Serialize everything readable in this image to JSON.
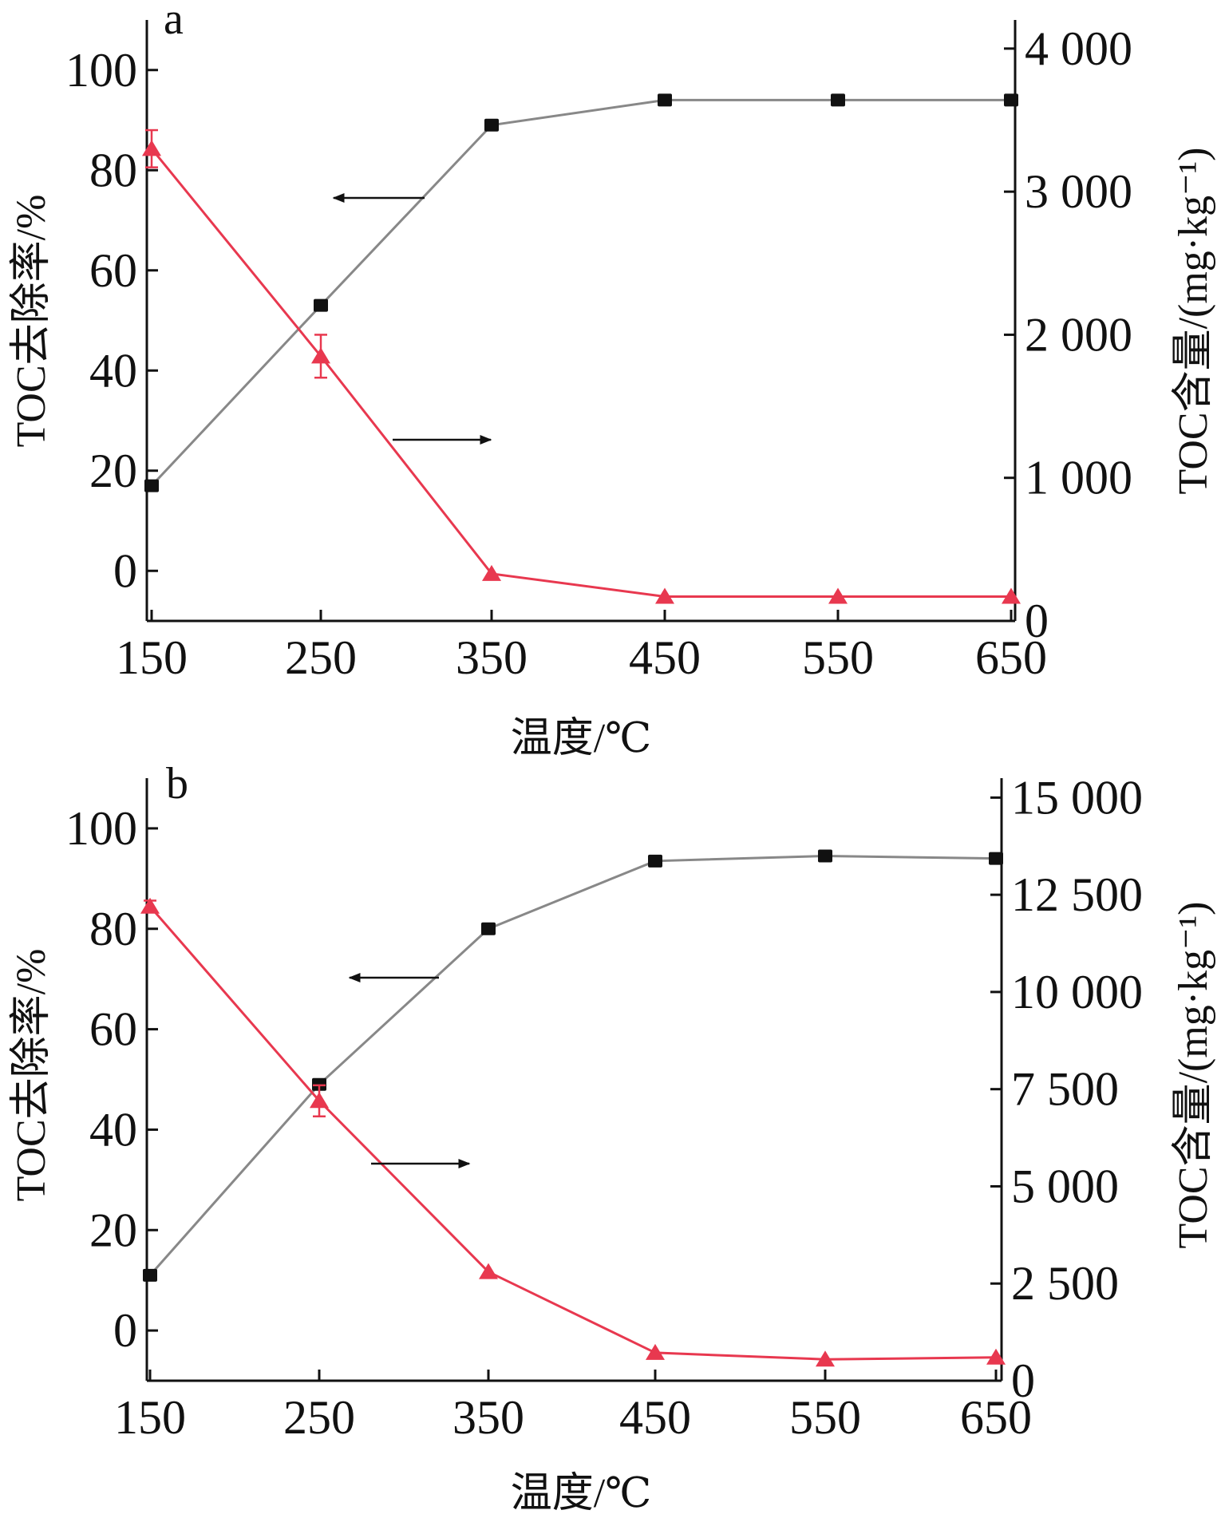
{
  "chart_data": [
    {
      "type": "line",
      "panel_label": "a",
      "xlabel": "温度/℃",
      "ylabel_left": "TOC去除率/%",
      "ylabel_right": "TOC含量/(mg·kg⁻¹)",
      "x": [
        150,
        250,
        350,
        450,
        550,
        650
      ],
      "x_tick_labels": [
        "150",
        "250",
        "350",
        "450",
        "550",
        "650"
      ],
      "xlim": [
        150,
        650
      ],
      "ylim_left": [
        -10,
        110
      ],
      "ylim_right": [
        0,
        4200
      ],
      "left_ticks": [
        "0",
        "20",
        "40",
        "60",
        "80",
        "100"
      ],
      "right_ticks": [
        "0",
        "1 000",
        "2 000",
        "3 000",
        "4 000"
      ],
      "grid": false,
      "series": [
        {
          "axis": "left",
          "marker": "square",
          "color": "#888888",
          "marker_color": "#111111",
          "values": [
            17,
            53,
            89,
            94,
            94,
            94
          ]
        },
        {
          "axis": "right",
          "marker": "triangle",
          "color": "#e8384f",
          "values": [
            3300,
            1850,
            330,
            170,
            170,
            170
          ],
          "error": [
            130,
            150,
            0,
            0,
            0,
            0
          ]
        }
      ],
      "annotations": [
        {
          "type": "arrow",
          "direction": "left",
          "points_to": "left axis"
        },
        {
          "type": "arrow",
          "direction": "right",
          "points_to": "right axis"
        }
      ]
    },
    {
      "type": "line",
      "panel_label": "b",
      "xlabel": "温度/℃",
      "ylabel_left": "TOC去除率/%",
      "ylabel_right": "TOC含量/(mg·kg⁻¹)",
      "x": [
        150,
        250,
        350,
        450,
        550,
        650
      ],
      "x_tick_labels": [
        "150",
        "250",
        "350",
        "450",
        "550",
        "650"
      ],
      "xlim": [
        150,
        650
      ],
      "ylim_left": [
        -10,
        110
      ],
      "ylim_right": [
        0,
        15500
      ],
      "left_ticks": [
        "0",
        "20",
        "40",
        "60",
        "80",
        "100"
      ],
      "right_ticks": [
        "0",
        "2 500",
        "5 000",
        "7 500",
        "10 000",
        "12 500",
        "15 000"
      ],
      "grid": false,
      "series": [
        {
          "axis": "left",
          "marker": "square",
          "color": "#888888",
          "marker_color": "#111111",
          "values": [
            11,
            49,
            80,
            93.5,
            94.5,
            94
          ]
        },
        {
          "axis": "right",
          "marker": "triangle",
          "color": "#e8384f",
          "values": [
            12200,
            7200,
            2800,
            720,
            550,
            600
          ],
          "error": [
            150,
            400,
            0,
            0,
            0,
            0
          ]
        }
      ],
      "annotations": [
        {
          "type": "arrow",
          "direction": "left",
          "points_to": "left axis"
        },
        {
          "type": "arrow",
          "direction": "right",
          "points_to": "right axis"
        }
      ]
    }
  ]
}
